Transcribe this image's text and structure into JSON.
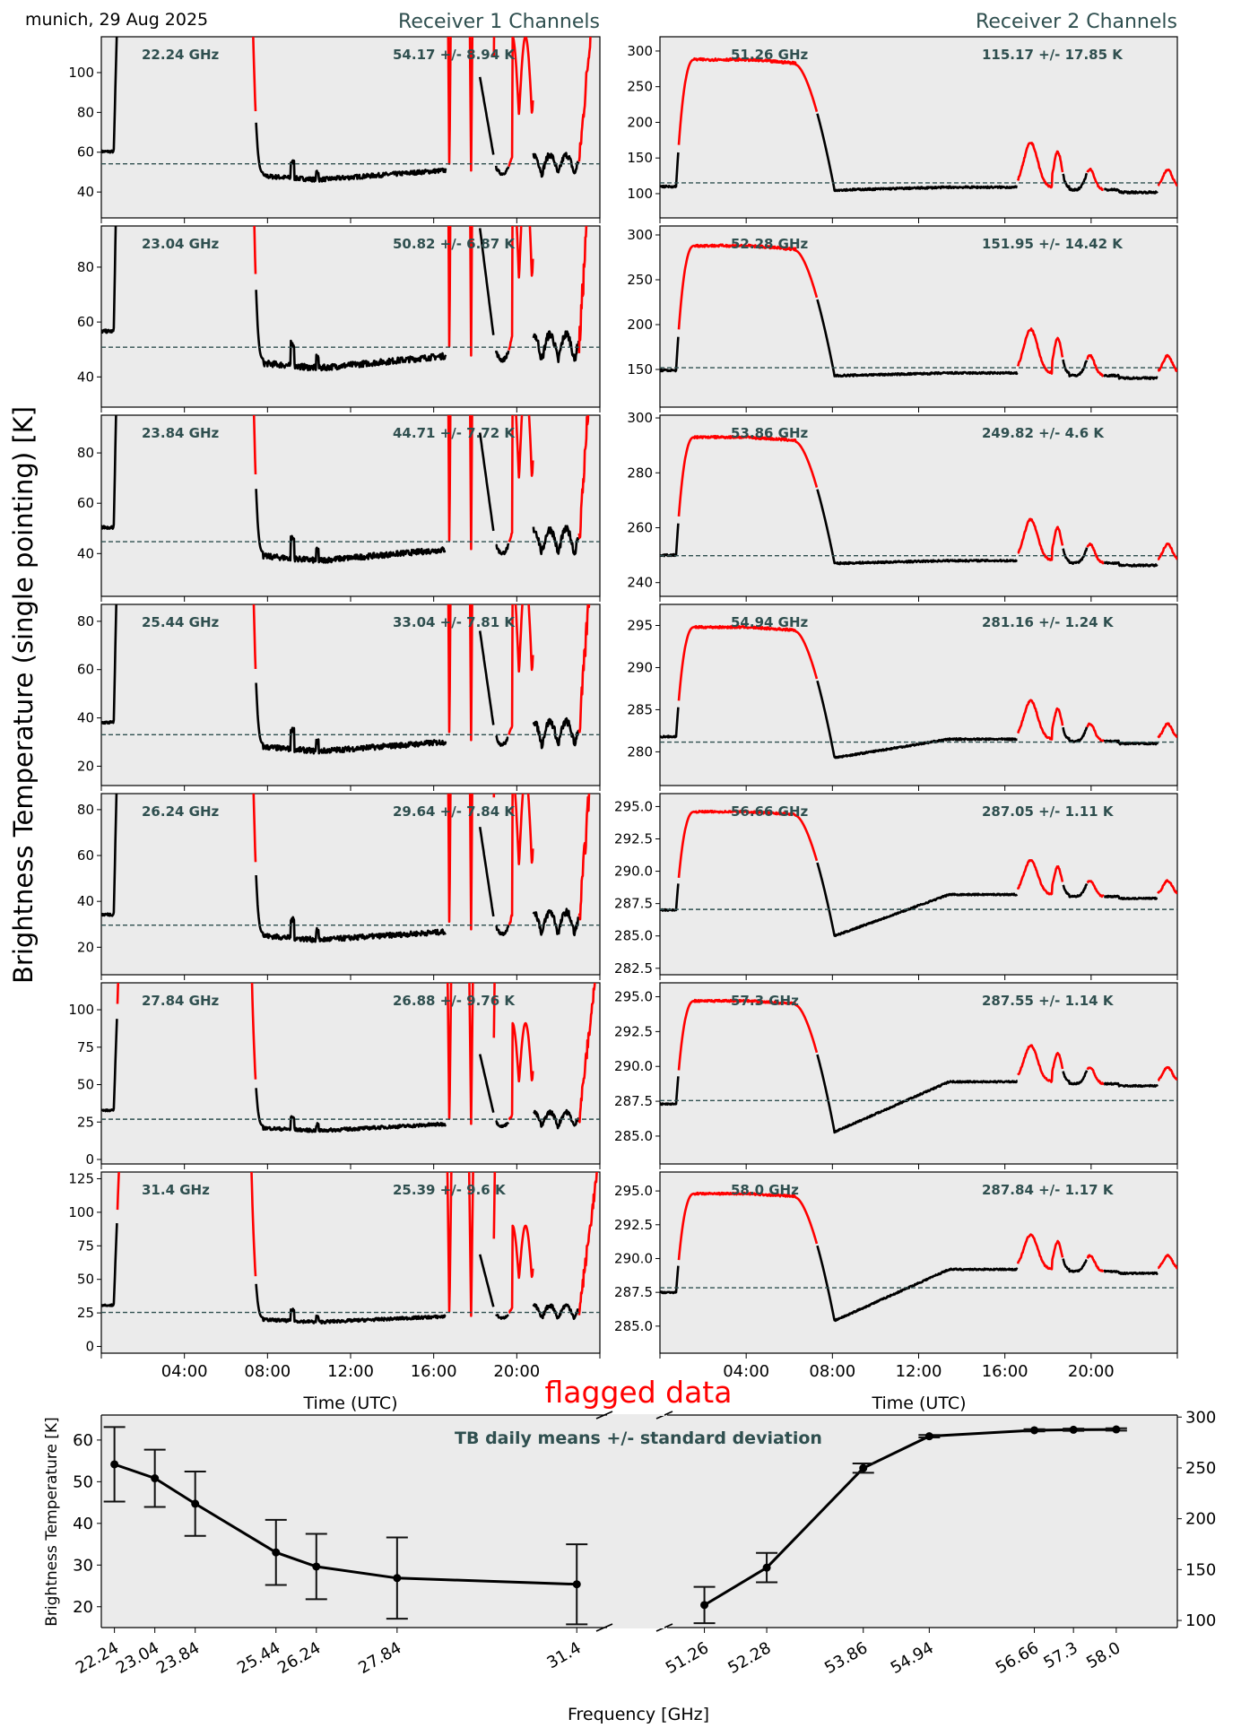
{
  "header": {
    "location_date": "munich, 29 Aug 2025",
    "receiver1_title": "Receiver 1 Channels",
    "receiver2_title": "Receiver 2 Channels"
  },
  "y_label_main": "Brightness Temperature (single pointing) [K]",
  "flag_label": "flagged data",
  "colors": {
    "panel_bg": "#ebebeb",
    "good_data": "#000000",
    "flagged_data": "#ff0000",
    "mean_line": "#2f4f4f",
    "annotation": "#2f4f4f",
    "flag_text": "#ff0000"
  },
  "chart_data": [
    {
      "type": "line",
      "title": "Receiver 1 Channels",
      "xlabel": "Time (UTC)",
      "ylabel": "Brightness Temperature (single pointing) [K]",
      "x_ticks": [
        "04:00",
        "08:00",
        "12:00",
        "16:00",
        "20:00"
      ],
      "x_tick_hours": [
        4,
        8,
        12,
        16,
        20
      ],
      "xlim_hours": [
        0,
        24
      ],
      "panels": [
        {
          "freq_label": "22.24 GHz",
          "stats_label": "54.17 +/- 8.94 K",
          "mean": 54.17,
          "ylim": [
            27,
            118
          ],
          "yticks": [
            40,
            60,
            80,
            100
          ],
          "base": 48
        },
        {
          "freq_label": "23.04 GHz",
          "stats_label": "50.82 +/- 6.87 K",
          "mean": 50.82,
          "ylim": [
            29,
            95
          ],
          "yticks": [
            40,
            60,
            80
          ],
          "base": 45
        },
        {
          "freq_label": "23.84 GHz",
          "stats_label": "44.71 +/- 7.72 K",
          "mean": 44.71,
          "ylim": [
            23,
            95
          ],
          "yticks": [
            40,
            60,
            80
          ],
          "base": 39
        },
        {
          "freq_label": "25.44 GHz",
          "stats_label": "33.04 +/- 7.81 K",
          "mean": 33.04,
          "ylim": [
            12,
            87
          ],
          "yticks": [
            20,
            40,
            60,
            80
          ],
          "base": 28
        },
        {
          "freq_label": "26.24 GHz",
          "stats_label": "29.64 +/- 7.84 K",
          "mean": 29.64,
          "ylim": [
            8,
            87
          ],
          "yticks": [
            20,
            40,
            60,
            80
          ],
          "base": 25
        },
        {
          "freq_label": "27.84 GHz",
          "stats_label": "26.88 +/- 9.76 K",
          "mean": 26.88,
          "ylim": [
            -3,
            118
          ],
          "yticks": [
            0,
            25,
            50,
            75,
            100
          ],
          "base": 21
        },
        {
          "freq_label": "31.4 GHz",
          "stats_label": "25.39 +/- 9.6 K",
          "mean": 25.39,
          "ylim": [
            -5,
            130
          ],
          "yticks": [
            0,
            25,
            50,
            75,
            100,
            125
          ],
          "base": 20
        }
      ]
    },
    {
      "type": "line",
      "title": "Receiver 2 Channels",
      "xlabel": "Time (UTC)",
      "x_ticks": [
        "04:00",
        "08:00",
        "12:00",
        "16:00",
        "20:00"
      ],
      "x_tick_hours": [
        4,
        8,
        12,
        16,
        20
      ],
      "xlim_hours": [
        0,
        24
      ],
      "panels": [
        {
          "freq_label": "51.26 GHz",
          "stats_label": "115.17 +/- 17.85 K",
          "mean": 115.17,
          "ylim": [
            66,
            320
          ],
          "yticks": [
            100,
            150,
            200,
            250,
            300
          ],
          "ytick_labels": [
            "100",
            "150",
            "200",
            "250",
            "300"
          ],
          "low": 110,
          "high": 288,
          "plateau": 105,
          "late": 109
        },
        {
          "freq_label": "52.28 GHz",
          "stats_label": "151.95 +/- 14.42 K",
          "mean": 151.95,
          "ylim": [
            108,
            310
          ],
          "yticks": [
            150,
            200,
            250,
            300
          ],
          "ytick_labels": [
            "150",
            "200",
            "250",
            "300"
          ],
          "low": 149,
          "high": 288,
          "plateau": 143,
          "late": 146
        },
        {
          "freq_label": "53.86 GHz",
          "stats_label": "249.82 +/- 4.6 K",
          "mean": 249.82,
          "ylim": [
            235,
            301
          ],
          "yticks": [
            240,
            260,
            280,
            300
          ],
          "ytick_labels": [
            "240",
            "260",
            "280",
            "300"
          ],
          "low": 250,
          "high": 293,
          "plateau": 247,
          "late": 248
        },
        {
          "freq_label": "54.94 GHz",
          "stats_label": "281.16 +/- 1.24 K",
          "mean": 281.16,
          "ylim": [
            276,
            297.5
          ],
          "yticks": [
            280,
            285,
            290,
            295
          ],
          "ytick_labels": [
            "280",
            "285",
            "290",
            "295"
          ],
          "low": 281.8,
          "high": 294.8,
          "plateau": 279.3,
          "late": 281.5
        },
        {
          "freq_label": "56.66 GHz",
          "stats_label": "287.05 +/- 1.11 K",
          "mean": 287.05,
          "ylim": [
            282,
            296
          ],
          "yticks": [
            282.5,
            285.0,
            287.5,
            290.0,
            292.5,
            295.0
          ],
          "ytick_labels": [
            "282.5",
            "285.0",
            "287.5",
            "290.0",
            "292.5",
            "295.0"
          ],
          "low": 287.0,
          "high": 294.6,
          "plateau": 285.0,
          "late": 288.2
        },
        {
          "freq_label": "57.3 GHz",
          "stats_label": "287.55 +/- 1.14 K",
          "mean": 287.55,
          "ylim": [
            283,
            296
          ],
          "yticks": [
            285.0,
            287.5,
            290.0,
            292.5,
            295.0
          ],
          "ytick_labels": [
            "285.0",
            "287.5",
            "290.0",
            "292.5",
            "295.0"
          ],
          "low": 287.3,
          "high": 294.7,
          "plateau": 285.3,
          "late": 288.9
        },
        {
          "freq_label": "58.0 GHz",
          "stats_label": "287.84 +/- 1.17 K",
          "mean": 287.84,
          "ylim": [
            283,
            296.4
          ],
          "yticks": [
            285.0,
            287.5,
            290.0,
            292.5,
            295.0
          ],
          "ytick_labels": [
            "285.0",
            "287.5",
            "290.0",
            "292.5",
            "295.0"
          ],
          "low": 287.5,
          "high": 294.8,
          "plateau": 285.4,
          "late": 289.2
        }
      ]
    },
    {
      "type": "line",
      "title": "TB daily means +/- standard deviation",
      "xlabel": "Frequency [GHz]",
      "ylabel": "Brightness Temperature [K]",
      "left_axis": {
        "x": [
          22.24,
          23.04,
          23.84,
          25.44,
          26.24,
          27.84,
          31.4
        ],
        "x_tick_labels": [
          "22.24",
          "23.04",
          "23.84",
          "25.44",
          "26.24",
          "27.84",
          "31.4"
        ],
        "mean": [
          54.17,
          50.82,
          44.71,
          33.04,
          29.64,
          26.88,
          25.39
        ],
        "std": [
          8.94,
          6.87,
          7.72,
          7.81,
          7.84,
          9.76,
          9.6
        ],
        "xlim": [
          21.98,
          32.0
        ],
        "ylim": [
          15,
          66
        ],
        "yticks": [
          20,
          30,
          40,
          50,
          60
        ]
      },
      "right_axis": {
        "x": [
          51.26,
          52.28,
          53.86,
          54.94,
          56.66,
          57.3,
          58.0
        ],
        "x_tick_labels": [
          "51.26",
          "52.28",
          "53.86",
          "54.94",
          "56.66",
          "57.3",
          "58.0"
        ],
        "mean": [
          115.17,
          151.95,
          249.82,
          281.16,
          287.05,
          287.55,
          287.84
        ],
        "std": [
          17.85,
          14.42,
          4.6,
          1.24,
          1.11,
          1.14,
          1.17
        ],
        "xlim": [
          50.65,
          59.0
        ],
        "ylim": [
          93,
          302
        ],
        "yticks": [
          100,
          150,
          200,
          250,
          300
        ]
      }
    }
  ]
}
